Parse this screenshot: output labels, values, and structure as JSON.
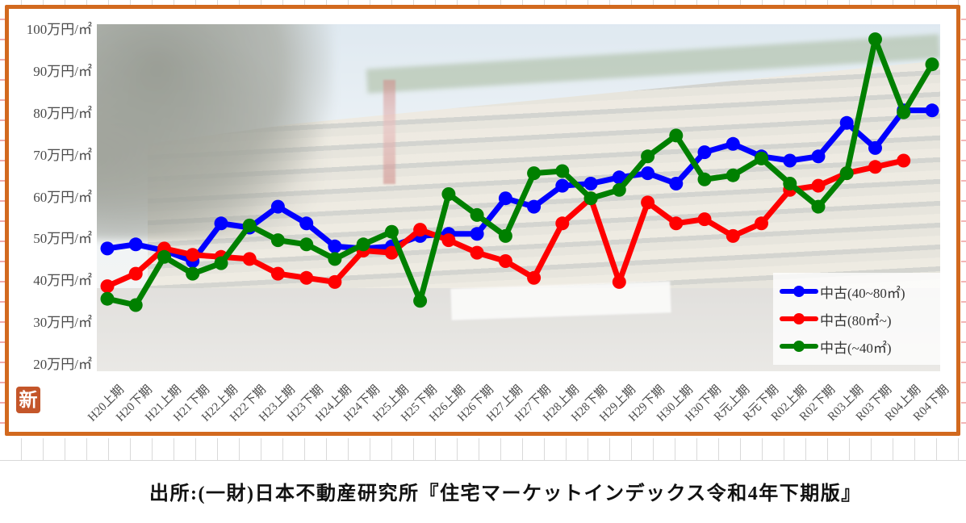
{
  "page": {
    "stamp_label": "新",
    "source_text": "出所:(一財)日本不動産研究所『住宅マーケットインデックス令和4年下期版』"
  },
  "chart_data": {
    "type": "line",
    "title": "",
    "xlabel": "",
    "ylabel": "万円/㎡",
    "ylim": [
      20,
      100
    ],
    "ytick_step": 10,
    "yticks": [
      "100万円/㎡",
      "90万円/㎡",
      "80万円/㎡",
      "70万円/㎡",
      "60万円/㎡",
      "50万円/㎡",
      "40万円/㎡",
      "30万円/㎡",
      "20万円/㎡"
    ],
    "x_label_rotation": 45,
    "grid": false,
    "legend_position": "inside-bottom-right",
    "background": "faded photo of the Japan Real Estate Institute building",
    "marker": "circle",
    "categories": [
      "H20上期",
      "H20下期",
      "H21上期",
      "H21下期",
      "H22上期",
      "H22下期",
      "H23上期",
      "H23下期",
      "H24上期",
      "H24下期",
      "H25上期",
      "H25下期",
      "H26上期",
      "H26下期",
      "H27上期",
      "H27下期",
      "H28上期",
      "H28下期",
      "H29上期",
      "H29下期",
      "H30上期",
      "H30下期",
      "R元上期",
      "R元下期",
      "R02上期",
      "R02下期",
      "R03上期",
      "R03下期",
      "R04上期",
      "R04下期"
    ],
    "series": [
      {
        "name": "中古(40~80㎡)",
        "color": "#0000ff",
        "values": [
          47,
          48,
          46.5,
          44,
          53,
          52,
          57,
          53,
          47.5,
          47,
          47.5,
          50,
          50.5,
          50.5,
          59,
          57,
          62,
          62.5,
          64,
          65,
          62.5,
          70,
          72,
          69,
          68,
          69,
          77,
          71,
          80,
          80
        ]
      },
      {
        "name": "中古(80㎡~)",
        "color": "#ff0000",
        "values": [
          38,
          41,
          47,
          45.5,
          45,
          44.5,
          41,
          40,
          39,
          46.5,
          46,
          51.5,
          49,
          46,
          44,
          40,
          53,
          59,
          39,
          58,
          53,
          54,
          50,
          53,
          61,
          62,
          65,
          66.5,
          68,
          null
        ]
      },
      {
        "name": "中古(~40㎡)",
        "color": "#008000",
        "values": [
          35,
          33.5,
          45,
          41,
          43.5,
          52.5,
          49,
          48,
          44.5,
          48,
          51,
          34.5,
          60,
          55,
          50,
          65,
          65.5,
          59,
          61,
          69,
          74,
          63.5,
          64.5,
          68.5,
          62.5,
          57,
          65,
          97,
          79.5,
          91
        ]
      }
    ]
  }
}
